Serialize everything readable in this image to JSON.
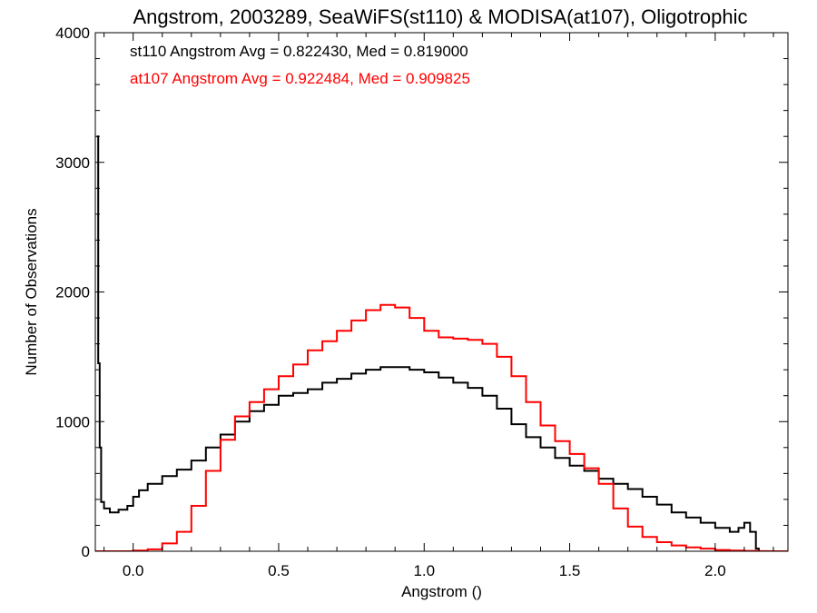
{
  "chart_data": {
    "type": "line",
    "title": "Angstrom, 2003289, SeaWiFS(st110) & MODISA(at107), Oligotrophic",
    "xlabel": "Angstrom ()",
    "ylabel": "Number of Observations",
    "xlim": [
      -0.13,
      2.25
    ],
    "ylim": [
      0,
      4000
    ],
    "xticks": [
      "0.0",
      "0.5",
      "1.0",
      "1.5",
      "2.0"
    ],
    "xtick_values": [
      0.0,
      0.5,
      1.0,
      1.5,
      2.0
    ],
    "yticks": [
      "0",
      "1000",
      "2000",
      "3000",
      "4000"
    ],
    "ytick_values": [
      0,
      1000,
      2000,
      3000,
      4000
    ],
    "grid": false,
    "step": true,
    "legend": [
      {
        "text": "st110 Angstrom Avg = 0.822430, Med = 0.819000",
        "color": "#000000"
      },
      {
        "text": "at107 Angstrom Avg = 0.922484, Med = 0.909825",
        "color": "#ff0000"
      }
    ],
    "series": [
      {
        "color": "#000000",
        "x": [
          -0.125,
          -0.12,
          -0.115,
          -0.11,
          -0.1,
          -0.08,
          -0.05,
          -0.02,
          0.0,
          0.02,
          0.05,
          0.1,
          0.15,
          0.2,
          0.25,
          0.3,
          0.35,
          0.4,
          0.45,
          0.5,
          0.55,
          0.6,
          0.65,
          0.7,
          0.75,
          0.8,
          0.85,
          0.9,
          0.95,
          1.0,
          1.05,
          1.1,
          1.15,
          1.2,
          1.25,
          1.3,
          1.35,
          1.4,
          1.45,
          1.5,
          1.55,
          1.6,
          1.65,
          1.7,
          1.75,
          1.8,
          1.85,
          1.9,
          1.95,
          2.0,
          2.05,
          2.08,
          2.1,
          2.12,
          2.14,
          2.15
        ],
        "y": [
          3200,
          1450,
          800,
          380,
          330,
          300,
          320,
          350,
          420,
          470,
          520,
          580,
          630,
          700,
          800,
          900,
          1000,
          1080,
          1130,
          1200,
          1220,
          1250,
          1300,
          1330,
          1370,
          1400,
          1420,
          1420,
          1400,
          1380,
          1340,
          1300,
          1260,
          1200,
          1100,
          980,
          880,
          800,
          720,
          660,
          620,
          560,
          520,
          480,
          420,
          360,
          300,
          260,
          220,
          180,
          150,
          180,
          220,
          150,
          20,
          0
        ]
      },
      {
        "color": "#ff0000",
        "x": [
          -0.13,
          -0.05,
          0.0,
          0.05,
          0.1,
          0.15,
          0.2,
          0.25,
          0.3,
          0.35,
          0.4,
          0.45,
          0.5,
          0.55,
          0.6,
          0.65,
          0.7,
          0.75,
          0.8,
          0.85,
          0.9,
          0.95,
          1.0,
          1.05,
          1.1,
          1.15,
          1.2,
          1.25,
          1.3,
          1.35,
          1.4,
          1.45,
          1.5,
          1.55,
          1.6,
          1.65,
          1.7,
          1.75,
          1.8,
          1.85,
          1.9,
          1.95,
          2.0,
          2.05,
          2.1,
          2.15,
          2.2,
          2.25
        ],
        "y": [
          0,
          0,
          5,
          15,
          60,
          150,
          350,
          620,
          860,
          1040,
          1150,
          1250,
          1350,
          1440,
          1550,
          1620,
          1700,
          1780,
          1860,
          1900,
          1880,
          1800,
          1700,
          1650,
          1640,
          1630,
          1600,
          1500,
          1350,
          1150,
          970,
          850,
          750,
          640,
          520,
          330,
          190,
          110,
          70,
          45,
          30,
          20,
          10,
          5,
          3,
          1,
          0,
          0
        ]
      }
    ]
  }
}
